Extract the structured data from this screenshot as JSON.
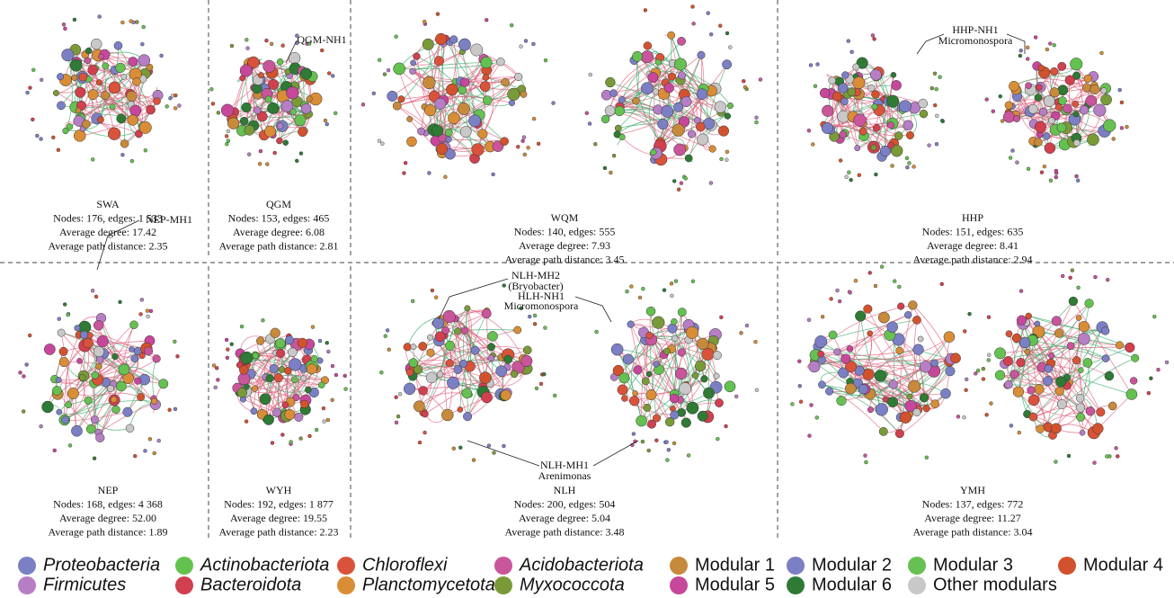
{
  "panels": [
    {
      "name": "SWA",
      "stats": [
        "Nodes: 176, edges: 1 533",
        "Average degree: 17.42",
        "Average path distance: 2.35"
      ],
      "annotations": []
    },
    {
      "name": "QGM",
      "stats": [
        "Nodes: 153, edges: 465",
        "Average degree: 6.08",
        "Average path distance: 2.81"
      ],
      "annotations": [
        "QGM-NH1"
      ]
    },
    {
      "name": "WQM",
      "stats": [
        "Nodes: 140, edges: 555",
        "Average degree: 7.93",
        "Average path distance: 3.45"
      ],
      "annotations": []
    },
    {
      "name": "HHP",
      "stats": [
        "Nodes: 151, edges: 635",
        "Average degree: 8.41",
        "Average path distance: 2.94"
      ],
      "annotations": [
        "HHP-NH1",
        "Micromonospora"
      ]
    },
    {
      "name": "NEP",
      "stats": [
        "Nodes: 168, edges: 4 368",
        "Average degree: 52.00",
        "Average path distance: 1.89"
      ],
      "annotations": [
        "NEP-MH1"
      ]
    },
    {
      "name": "WYH",
      "stats": [
        "Nodes: 192, edges: 1 877",
        "Average degree: 19.55",
        "Average path distance: 2.23"
      ],
      "annotations": []
    },
    {
      "name": "NLH",
      "stats": [
        "Nodes: 200, edges: 504",
        "Average degree: 5.04",
        "Average path distance: 3.48"
      ],
      "annotations": [
        "NLH-MH2",
        "(Bryobacter)",
        "HLH-NH1",
        "Micromonospora",
        "NLH-MH1",
        "Arenimonas"
      ]
    },
    {
      "name": "YMH",
      "stats": [
        "Nodes: 137, edges: 772",
        "Average degree: 11.27",
        "Average path distance: 3.04"
      ],
      "annotations": []
    }
  ],
  "legend": [
    {
      "label": "Proteobacteria",
      "color": "#7b7fc4",
      "italic": true
    },
    {
      "label": "Actinobacteriota",
      "color": "#63c24f",
      "italic": true
    },
    {
      "label": "Chloroflexi",
      "color": "#d9533a",
      "italic": true
    },
    {
      "label": "Acidobacteriota",
      "color": "#c9559b",
      "italic": true
    },
    {
      "label": "Modular 1",
      "color": "#c7893a",
      "italic": false
    },
    {
      "label": "Modular 2",
      "color": "#7b7fc4",
      "italic": false
    },
    {
      "label": "Modular 3",
      "color": "#67c052",
      "italic": false
    },
    {
      "label": "Modular 4",
      "color": "#d3522e",
      "italic": false
    },
    {
      "label": "Firmicutes",
      "color": "#b57ec5",
      "italic": true
    },
    {
      "label": "Bacteroidota",
      "color": "#d1404f",
      "italic": true
    },
    {
      "label": "Planctomycetota",
      "color": "#d98d36",
      "italic": true
    },
    {
      "label": "Myxococcota",
      "color": "#7a9a38",
      "italic": true
    },
    {
      "label": "Modular 5",
      "color": "#c7479b",
      "italic": false
    },
    {
      "label": "Modular 6",
      "color": "#2f7a35",
      "italic": false
    },
    {
      "label": "Other modulars",
      "color": "#c8c8c8",
      "italic": false
    }
  ]
}
